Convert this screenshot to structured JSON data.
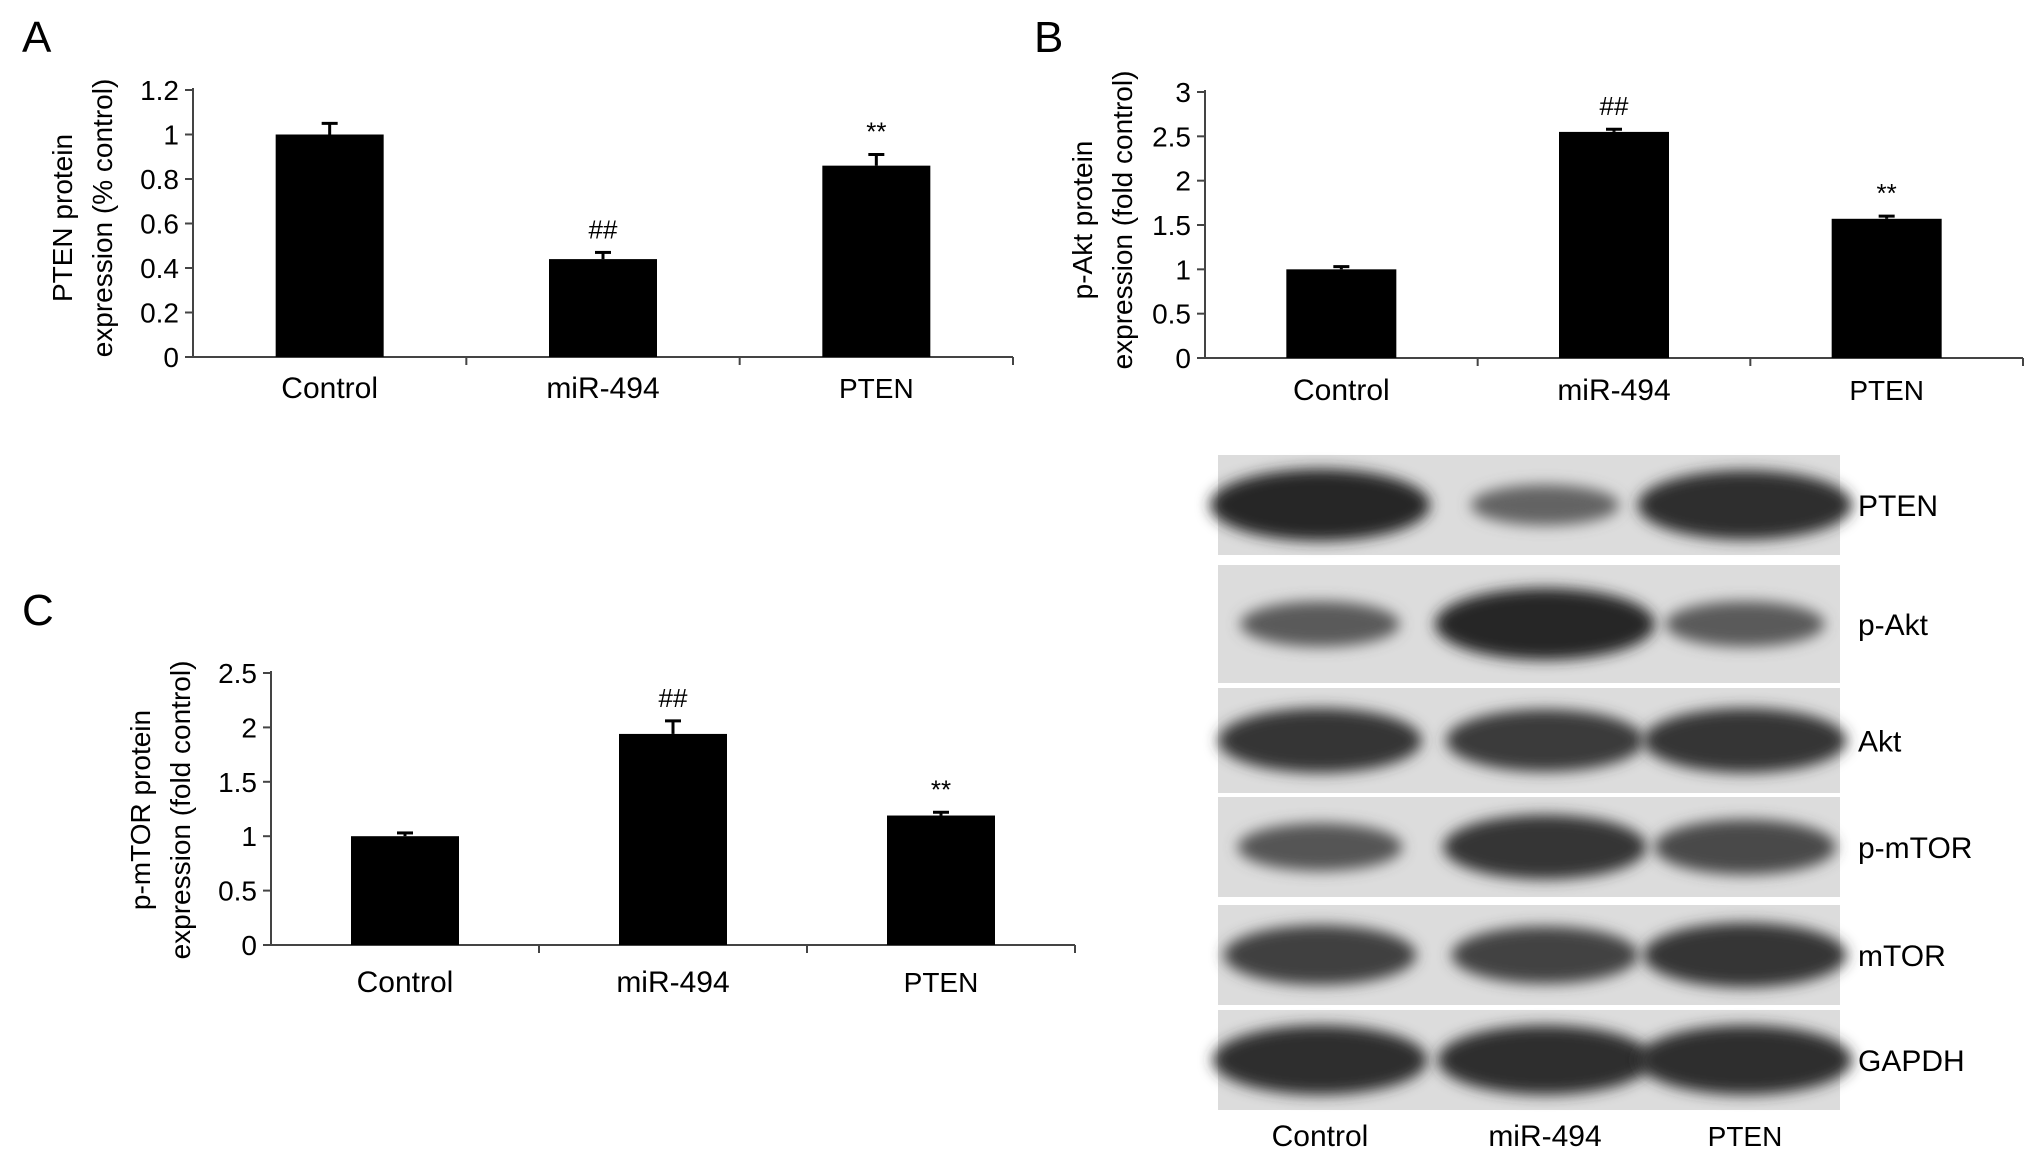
{
  "chart_data": [
    {
      "panel": "A",
      "type": "bar",
      "categories": [
        "Control",
        "miR-494",
        "PTEN"
      ],
      "values": [
        1.0,
        0.44,
        0.86
      ],
      "errors": [
        0.05,
        0.03,
        0.05
      ],
      "significance": [
        "",
        "##",
        "**"
      ],
      "ylabel_lines": [
        "PTEN protein",
        "expression (% control)"
      ],
      "yticks": [
        "0",
        "0.2",
        "0.4",
        "0.6",
        "0.8",
        "1",
        "1.2"
      ],
      "ylim": [
        0,
        1.2
      ],
      "grid": false,
      "bar_color": "#000000"
    },
    {
      "panel": "B",
      "type": "bar",
      "categories": [
        "Control",
        "miR-494",
        "PTEN"
      ],
      "values": [
        1.0,
        2.55,
        1.57
      ],
      "errors": [
        0.03,
        0.03,
        0.03
      ],
      "significance": [
        "",
        "##",
        "**"
      ],
      "ylabel_lines": [
        "p-Akt protein",
        "expression (fold control)"
      ],
      "yticks": [
        "0",
        "0.5",
        "1",
        "1.5",
        "2",
        "2.5",
        "3"
      ],
      "ylim": [
        0,
        3
      ],
      "grid": false,
      "bar_color": "#000000"
    },
    {
      "panel": "C",
      "type": "bar",
      "categories": [
        "Control",
        "miR-494",
        "PTEN"
      ],
      "values": [
        1.0,
        1.94,
        1.19
      ],
      "errors": [
        0.03,
        0.12,
        0.03
      ],
      "significance": [
        "",
        "##",
        "**"
      ],
      "ylabel_lines": [
        "p-mTOR protein",
        "expression (fold control)"
      ],
      "yticks": [
        "0",
        "0.5",
        "1",
        "1.5",
        "2",
        "2.5"
      ],
      "ylim": [
        0,
        2.5
      ],
      "grid": false,
      "bar_color": "#000000"
    }
  ],
  "blot": {
    "rows": [
      "PTEN",
      "p-Akt",
      "Akt",
      "p-mTOR",
      "mTOR",
      "GAPDH"
    ],
    "lanes": [
      "Control",
      "miR-494",
      "PTEN"
    ],
    "intensity": [
      [
        1.0,
        0.35,
        0.95
      ],
      [
        0.45,
        1.0,
        0.45
      ],
      [
        0.85,
        0.8,
        0.85
      ],
      [
        0.5,
        0.85,
        0.65
      ],
      [
        0.75,
        0.7,
        0.85
      ],
      [
        0.95,
        0.95,
        0.95
      ]
    ]
  }
}
